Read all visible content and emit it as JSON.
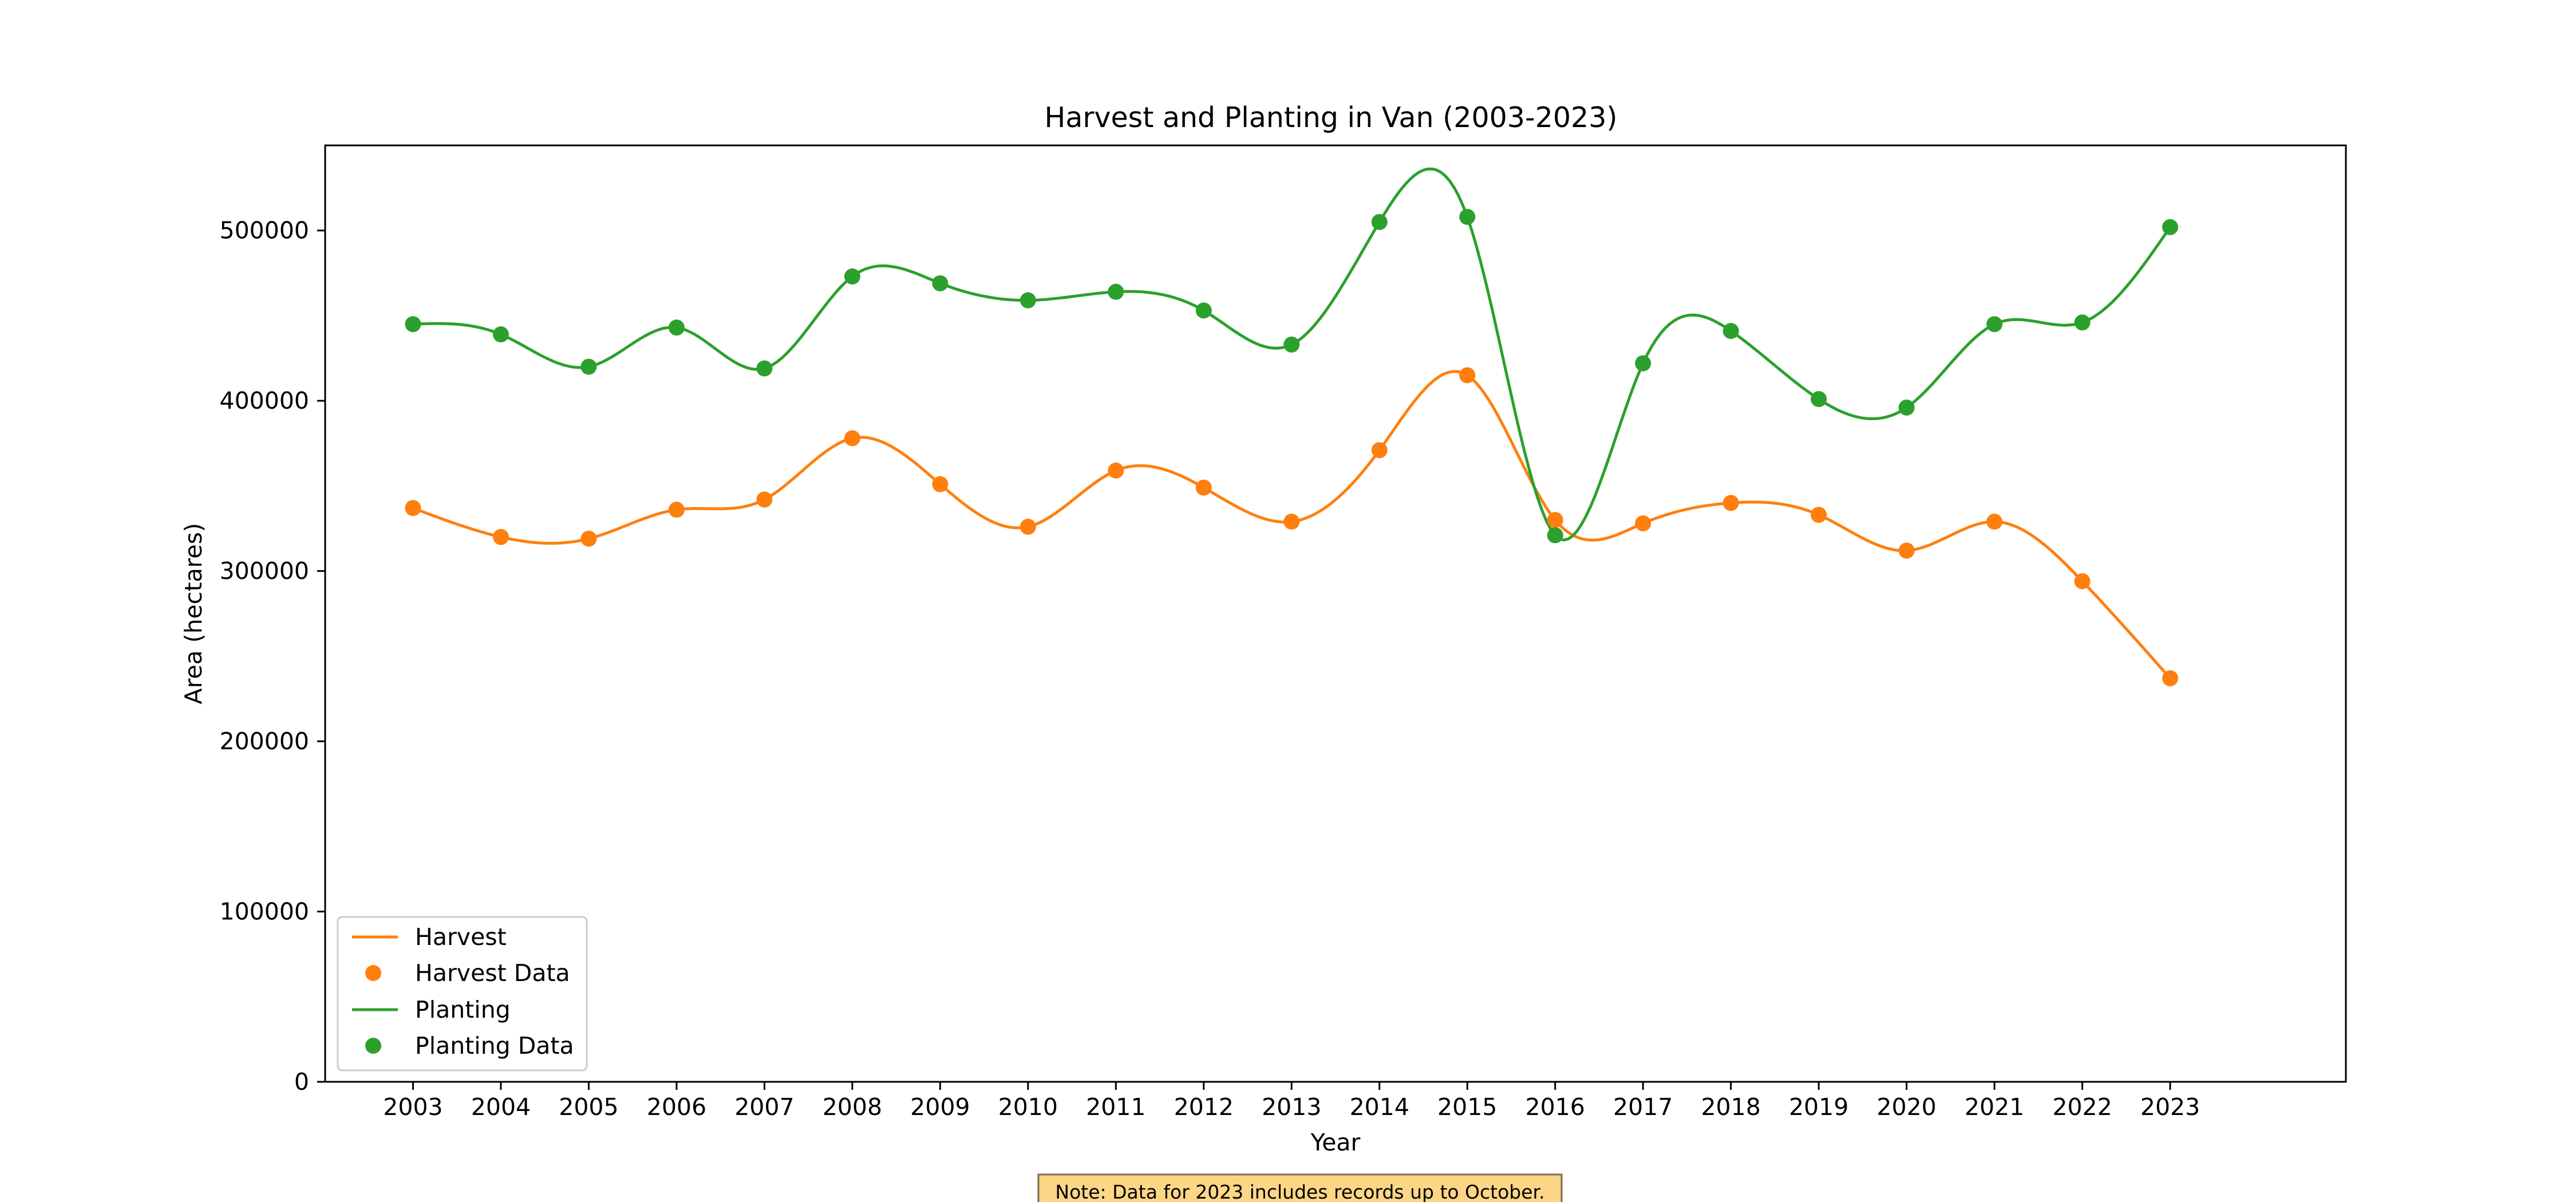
{
  "chart_data": {
    "type": "line",
    "title": "Harvest and Planting in Van (2003-2023)",
    "xlabel": "Year",
    "ylabel": "Area (hectares)",
    "x": [
      2003,
      2004,
      2005,
      2006,
      2007,
      2008,
      2009,
      2010,
      2011,
      2012,
      2013,
      2014,
      2015,
      2016,
      2017,
      2018,
      2019,
      2020,
      2021,
      2022,
      2023
    ],
    "xlim": [
      2002,
      2025
    ],
    "ylim": [
      0,
      550000
    ],
    "yticks": [
      0,
      100000,
      200000,
      300000,
      400000,
      500000
    ],
    "grid": false,
    "legend_position": "lower-left",
    "series": [
      {
        "name": "Harvest",
        "marker_label": "Harvest Data",
        "color": "#ff7f0e",
        "values": [
          337000,
          320000,
          319000,
          336000,
          342000,
          378000,
          351000,
          326000,
          359000,
          349000,
          329000,
          371000,
          415000,
          330000,
          328000,
          340000,
          333000,
          312000,
          329000,
          294000,
          237000
        ]
      },
      {
        "name": "Planting",
        "marker_label": "Planting Data",
        "color": "#2ca02c",
        "values": [
          445000,
          439000,
          420000,
          443000,
          419000,
          473000,
          469000,
          459000,
          464000,
          453000,
          433000,
          505000,
          508000,
          321000,
          422000,
          441000,
          401000,
          396000,
          445000,
          446000,
          502000
        ]
      }
    ],
    "annotation": {
      "text": "Note: Data for 2023 includes records up to October.",
      "background": "#fdd587"
    }
  }
}
